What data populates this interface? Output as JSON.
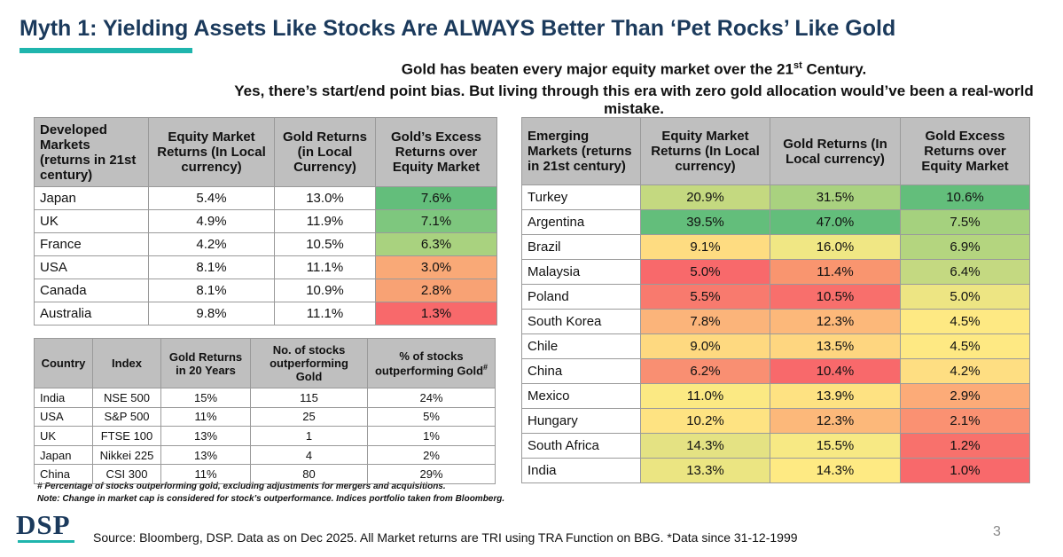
{
  "header": {
    "title": "Myth 1: Yielding Assets Like Stocks Are ALWAYS Better Than ‘Pet Rocks’ Like Gold"
  },
  "subtitle": {
    "line1": [
      "Gold has beaten every major equity market over the 21",
      "st",
      " Century."
    ],
    "line2": "Yes, there’s start/end point bias. But living through this era with zero gold allocation would’ve been a real-world mistake."
  },
  "developed": {
    "columns": [
      "Developed Markets (returns in 21st century)",
      "Equity Market Returns (In Local currency)",
      "Gold Returns (in Local Currency)",
      "Gold’s Excess Returns over Equity Market"
    ],
    "rows": [
      [
        "Japan",
        "5.4%",
        "13.0%",
        "7.6%"
      ],
      [
        "UK",
        "4.9%",
        "11.9%",
        "7.1%"
      ],
      [
        "France",
        "4.2%",
        "10.5%",
        "6.3%"
      ],
      [
        "USA",
        "8.1%",
        "11.1%",
        "3.0%"
      ],
      [
        "Canada",
        "8.1%",
        "10.9%",
        "2.8%"
      ],
      [
        "Australia",
        "9.8%",
        "11.1%",
        "1.3%"
      ]
    ],
    "excess_colors": [
      "#63be7b",
      "#7ec77e",
      "#a9d27f",
      "#f9a977",
      "#f8a274",
      "#f8696b"
    ]
  },
  "stocks": {
    "columns": [
      "Country",
      "Index",
      "Gold Returns in 20 Years",
      "No. of stocks outperforming Gold",
      [
        "% of stocks outperforming Gold",
        "#"
      ]
    ],
    "rows": [
      [
        "India",
        "NSE 500",
        "15%",
        "115",
        "24%"
      ],
      [
        "USA",
        "S&P 500",
        "11%",
        "25",
        "5%"
      ],
      [
        "UK",
        "FTSE 100",
        "13%",
        "1",
        "1%"
      ],
      [
        "Japan",
        "Nikkei 225",
        "13%",
        "4",
        "2%"
      ],
      [
        "China",
        "CSI 300",
        "11%",
        "80",
        "29%"
      ]
    ]
  },
  "emerging": {
    "columns": [
      "Emerging Markets (returns in 21st century)",
      "Equity Market Returns (In Local currency)",
      "Gold Returns (In Local currency)",
      "Gold Excess Returns over Equity Market"
    ],
    "rows": [
      [
        "Turkey",
        "20.9%",
        "31.5%",
        "10.6%"
      ],
      [
        "Argentina",
        "39.5%",
        "47.0%",
        "7.5%"
      ],
      [
        "Brazil",
        "9.1%",
        "16.0%",
        "6.9%"
      ],
      [
        "Malaysia",
        "5.0%",
        "11.4%",
        "6.4%"
      ],
      [
        "Poland",
        "5.5%",
        "10.5%",
        "5.0%"
      ],
      [
        "South Korea",
        "7.8%",
        "12.3%",
        "4.5%"
      ],
      [
        "Chile",
        "9.0%",
        "13.5%",
        "4.5%"
      ],
      [
        "China",
        "6.2%",
        "10.4%",
        "4.2%"
      ],
      [
        "Mexico",
        "11.0%",
        "13.9%",
        "2.9%"
      ],
      [
        "Hungary",
        "10.2%",
        "12.3%",
        "2.1%"
      ],
      [
        "South Africa",
        "14.3%",
        "15.5%",
        "1.2%"
      ],
      [
        "India",
        "13.3%",
        "14.3%",
        "1.0%"
      ]
    ],
    "colors": [
      [
        "#c4d980",
        "#a9d27f",
        "#63be7b"
      ],
      [
        "#63be7b",
        "#63be7b",
        "#a5d17e"
      ],
      [
        "#fedc81",
        "#f0e784",
        "#b4d57f"
      ],
      [
        "#f8696b",
        "#f9956f",
        "#c4d981"
      ],
      [
        "#f87a6e",
        "#f86f6c",
        "#ede583"
      ],
      [
        "#fbb47a",
        "#fcb87a",
        "#fee983"
      ],
      [
        "#fed980",
        "#fed680",
        "#fee983"
      ],
      [
        "#f98f72",
        "#f8696b",
        "#fede82"
      ],
      [
        "#fbe983",
        "#fee282",
        "#fcab78"
      ],
      [
        "#fee382",
        "#fcb87a",
        "#fa9172"
      ],
      [
        "#e4e283",
        "#f7e984",
        "#f8716c"
      ],
      [
        "#ebe582",
        "#feea83",
        "#f8696b"
      ]
    ]
  },
  "notes": [
    "# Percentage of stocks outperforming gold, excluding adjustments for mergers and acquisitions.",
    "Note: Change in market cap is considered for stock’s outperformance. Indices portfolio taken from Bloomberg."
  ],
  "logo": "DSP",
  "source": "Source: Bloomberg, DSP. Data as on Dec 2025. All Market returns are TRI using TRA Function on BBG. *Data since 31-12-1999",
  "page_number": "3"
}
